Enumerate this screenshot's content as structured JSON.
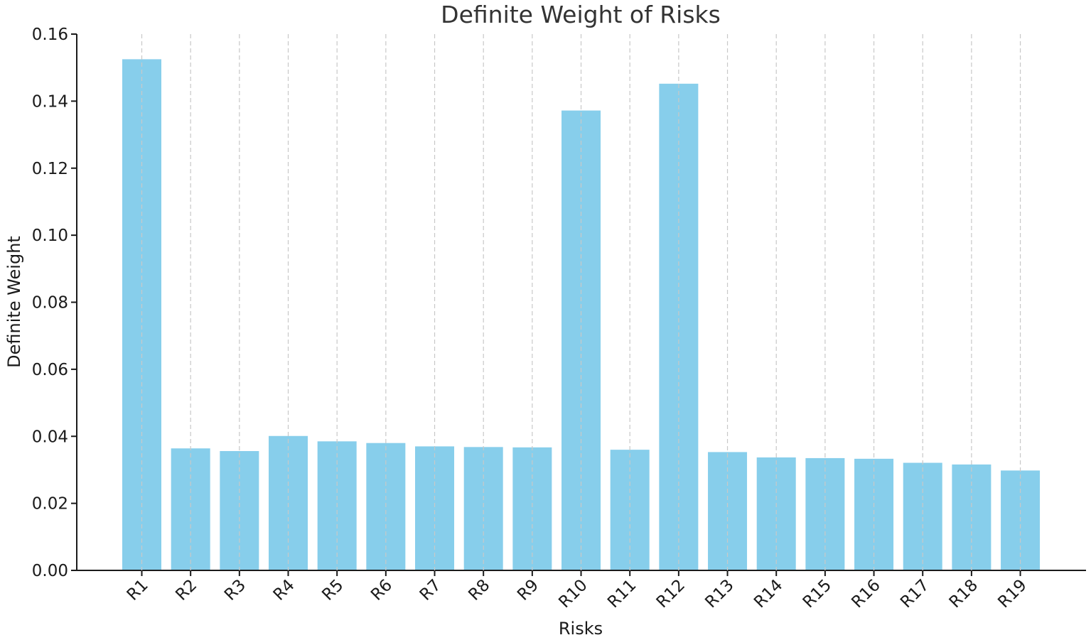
{
  "chart_data": {
    "type": "bar",
    "title": "Definite Weight of Risks",
    "xlabel": "Risks",
    "ylabel": "Definite Weight",
    "categories": [
      "R1",
      "R2",
      "R3",
      "R4",
      "R5",
      "R6",
      "R7",
      "R8",
      "R9",
      "R10",
      "R11",
      "R12",
      "R13",
      "R14",
      "R15",
      "R16",
      "R17",
      "R18",
      "R19"
    ],
    "values": [
      0.1525,
      0.0364,
      0.0356,
      0.0401,
      0.0385,
      0.038,
      0.037,
      0.0368,
      0.0367,
      0.1372,
      0.036,
      0.1452,
      0.0353,
      0.0337,
      0.0335,
      0.0333,
      0.0321,
      0.0316,
      0.0298
    ],
    "ylim": [
      0,
      0.16
    ],
    "yticks": [
      "0.00",
      "0.02",
      "0.04",
      "0.06",
      "0.08",
      "0.10",
      "0.12",
      "0.14",
      "0.16"
    ],
    "grid": "x-dashed",
    "bar_color": "#87CEEB"
  }
}
